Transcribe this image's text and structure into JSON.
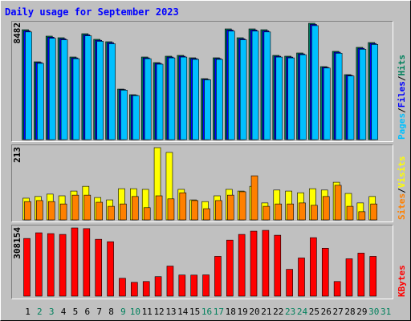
{
  "chart_data": {
    "type": "bar",
    "title": "Daily usage for September 2023",
    "categories": [
      "1",
      "2",
      "3",
      "4",
      "5",
      "6",
      "7",
      "8",
      "9",
      "10",
      "11",
      "12",
      "13",
      "14",
      "15",
      "16",
      "17",
      "18",
      "19",
      "20",
      "21",
      "22",
      "23",
      "24",
      "25",
      "26",
      "27",
      "28",
      "29",
      "30",
      "31"
    ],
    "category_colors": [
      "#000000",
      "#00805c",
      "#00805c",
      "#000000",
      "#000000",
      "#000000",
      "#000000",
      "#000000",
      "#00805c",
      "#00805c",
      "#000000",
      "#000000",
      "#000000",
      "#000000",
      "#000000",
      "#00805c",
      "#00805c",
      "#000000",
      "#000000",
      "#000000",
      "#000000",
      "#000000",
      "#00805c",
      "#00805c",
      "#000000",
      "#000000",
      "#000000",
      "#000000",
      "#000000",
      "#00805c",
      "#00805c"
    ],
    "legend_separator": "/",
    "panels": [
      {
        "ylim": [
          0,
          8482
        ],
        "yticks": [
          8482
        ],
        "series": [
          {
            "name": "Pages",
            "color": "#00c0ff",
            "values": [
              7850,
              5560,
              7390,
              7280,
              5900,
              7570,
              7170,
              6990,
              3610,
              3210,
              5900,
              5500,
              5960,
              6020,
              5850,
              4360,
              5850,
              7910,
              7280,
              7910,
              7850,
              6020,
              5960,
              6190,
              8310,
              5220,
              6300,
              4640,
              6590,
              6940,
              null
            ]
          },
          {
            "name": "Files",
            "color": "#0000ff",
            "values": [
              7930,
              5620,
              7470,
              7350,
              5960,
              7640,
              7240,
              7070,
              3650,
              3240,
              5960,
              5560,
              6020,
              6080,
              5910,
              4400,
              5910,
              7990,
              7350,
              7990,
              7930,
              6080,
              6020,
              6250,
              8400,
              5270,
              6370,
              4690,
              6660,
              7010,
              null
            ]
          },
          {
            "name": "Hits",
            "color": "#00805c",
            "values": [
              8014,
              5674,
              7546,
              7429,
              6025,
              7722,
              7312,
              7137,
              3685,
              3276,
              6025,
              5616,
              6084,
              6142,
              5967,
              4446,
              5967,
              8073,
              7429,
              8073,
              8014,
              6142,
              6084,
              6318,
              8482,
              5323,
              6435,
              4738,
              6727,
              7078,
              null
            ]
          }
        ]
      },
      {
        "ylim": [
          0,
          213
        ],
        "yticks": [
          213
        ],
        "series": [
          {
            "name": "Sites",
            "color": "#ff8000",
            "values": [
              54,
              57,
              54,
              47,
              73,
              73,
              52,
              40,
              47,
              69,
              36,
              71,
              62,
              80,
              57,
              33,
              57,
              73,
              83,
              130,
              40,
              47,
              47,
              50,
              43,
              69,
              102,
              40,
              24,
              47,
              null
            ]
          },
          {
            "name": "Visits",
            "color": "#ffff00",
            "values": [
              64,
              69,
              76,
              71,
              85,
              99,
              66,
              59,
              92,
              92,
              90,
              213,
              199,
              90,
              59,
              54,
              71,
              90,
              85,
              99,
              50,
              88,
              85,
              80,
              92,
              88,
              111,
              78,
              50,
              69,
              null
            ]
          }
        ]
      },
      {
        "ylim": [
          0,
          308154
        ],
        "yticks": [
          308154
        ],
        "series": [
          {
            "name": "KBytes",
            "color": "#ff0000",
            "values": [
              260464,
              286143,
              282475,
              278806,
              308154,
              305000,
              256795,
              245790,
              80707,
              62365,
              66033,
              88044,
              135735,
              95381,
              95000,
              96000,
              179757,
              253127,
              278806,
              293480,
              297149,
              275138,
              121061,
              172420,
              264132,
              216442,
              66033,
              168751,
              194431,
              179757,
              null
            ]
          }
        ]
      }
    ]
  }
}
